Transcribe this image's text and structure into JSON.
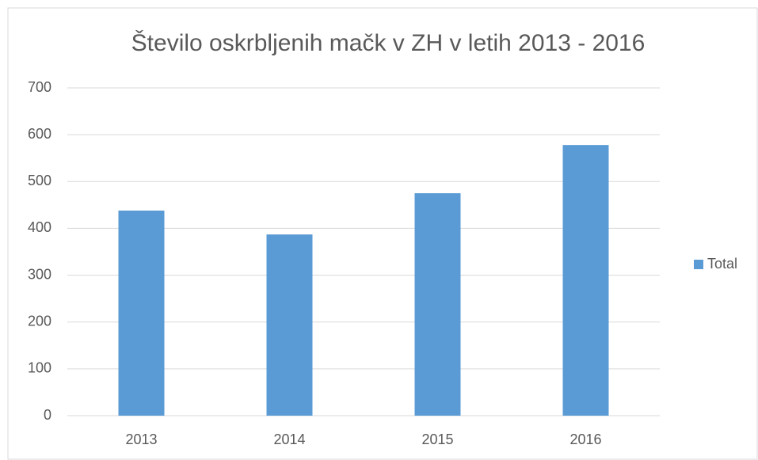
{
  "chart_data": {
    "type": "bar",
    "title": "Število oskrbljenih mačk v ZH v letih 2013 - 2016",
    "categories": [
      "2013",
      "2014",
      "2015",
      "2016"
    ],
    "series": [
      {
        "name": "Total",
        "color": "#5b9bd5",
        "values": [
          438,
          387,
          475,
          578
        ]
      }
    ],
    "ylim": [
      0,
      700
    ],
    "yticks": [
      0,
      100,
      200,
      300,
      400,
      500,
      600,
      700
    ],
    "grid": true,
    "legend": "right"
  }
}
